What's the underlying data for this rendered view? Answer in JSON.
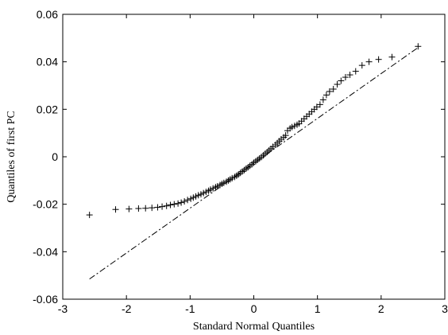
{
  "chart_data": {
    "type": "scatter",
    "title": "",
    "xlabel": "Standard Normal Quantiles",
    "ylabel": "Quantiles of first PC",
    "xlim": [
      -3,
      3
    ],
    "ylim": [
      -0.06,
      0.06
    ],
    "xticks": [
      -3,
      -2,
      -1,
      0,
      1,
      2,
      3
    ],
    "yticks": [
      -0.06,
      -0.04,
      -0.02,
      0,
      0.02,
      0.04,
      0.06
    ],
    "xtick_labels": [
      "-3",
      "-2",
      "-1",
      "0",
      "1",
      "2",
      "3"
    ],
    "ytick_labels": [
      "-0.06",
      "-0.04",
      "-0.02",
      "0",
      "0.02",
      "0.04",
      "0.06"
    ],
    "grid": false,
    "marker": "+",
    "reference_line": {
      "style": "dash-dot",
      "x": [
        -2.58,
        2.58
      ],
      "y": [
        -0.0515,
        0.046
      ]
    },
    "series": [
      {
        "x": [
          -2.58,
          -2.17,
          -1.96,
          -1.81,
          -1.7,
          -1.6,
          -1.51,
          -1.44,
          -1.37,
          -1.31,
          -1.25,
          -1.19,
          -1.14,
          -1.09,
          -1.04,
          -0.99,
          -0.95,
          -0.91,
          -0.87,
          -0.83,
          -0.79,
          -0.75,
          -0.71,
          -0.68,
          -0.64,
          -0.6,
          -0.57,
          -0.53,
          -0.5,
          -0.47,
          -0.43,
          -0.4,
          -0.37,
          -0.34,
          -0.3,
          -0.27,
          -0.24,
          -0.21,
          -0.18,
          -0.15,
          -0.12,
          -0.09,
          -0.06,
          -0.03,
          0.0,
          0.03,
          0.06,
          0.09,
          0.12,
          0.15,
          0.18,
          0.21,
          0.24,
          0.27,
          0.3,
          0.34,
          0.37,
          0.4,
          0.43,
          0.47,
          0.5,
          0.53,
          0.57,
          0.6,
          0.64,
          0.68,
          0.71,
          0.75,
          0.79,
          0.83,
          0.87,
          0.91,
          0.95,
          0.99,
          1.04,
          1.09,
          1.14,
          1.19,
          1.25,
          1.31,
          1.37,
          1.44,
          1.51,
          1.6,
          1.7,
          1.81,
          1.96,
          2.17,
          2.58
        ],
        "y": [
          -0.0245,
          -0.0222,
          -0.022,
          -0.0218,
          -0.0217,
          -0.0215,
          -0.0213,
          -0.021,
          -0.0207,
          -0.0203,
          -0.02,
          -0.0197,
          -0.0193,
          -0.0188,
          -0.0182,
          -0.0177,
          -0.0172,
          -0.0167,
          -0.0162,
          -0.0158,
          -0.0153,
          -0.0148,
          -0.0143,
          -0.0138,
          -0.0133,
          -0.0128,
          -0.0124,
          -0.0119,
          -0.0114,
          -0.011,
          -0.0105,
          -0.01,
          -0.0095,
          -0.009,
          -0.0085,
          -0.008,
          -0.0074,
          -0.0068,
          -0.0062,
          -0.0056,
          -0.005,
          -0.0044,
          -0.0038,
          -0.0032,
          -0.0025,
          -0.0019,
          -0.0013,
          -0.0007,
          -0.0001,
          0.0006,
          0.0013,
          0.002,
          0.0027,
          0.0034,
          0.0042,
          0.005,
          0.0058,
          0.0066,
          0.0074,
          0.0082,
          0.009,
          0.011,
          0.012,
          0.0125,
          0.013,
          0.0135,
          0.014,
          0.015,
          0.016,
          0.017,
          0.018,
          0.019,
          0.02,
          0.021,
          0.022,
          0.024,
          0.026,
          0.0275,
          0.0285,
          0.0305,
          0.032,
          0.0335,
          0.0345,
          0.036,
          0.0385,
          0.04,
          0.041,
          0.042,
          0.0465
        ]
      }
    ]
  }
}
